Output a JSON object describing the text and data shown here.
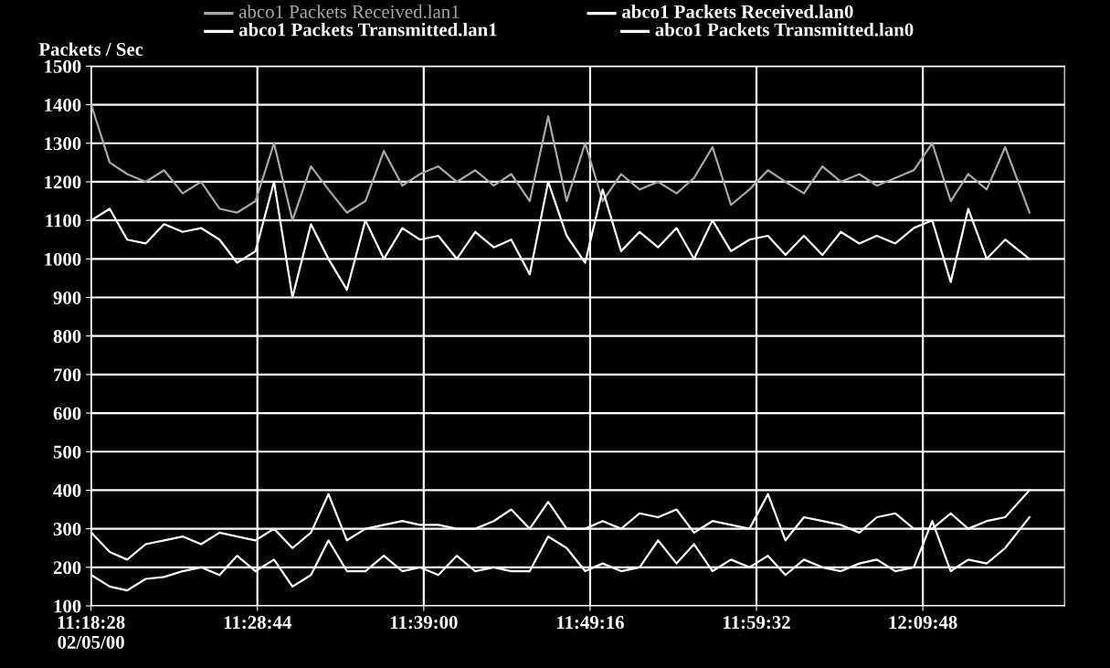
{
  "chart_data": {
    "type": "line",
    "ylabel": "Packets / Sec",
    "x": [
      11.308,
      11.327,
      11.345,
      11.364,
      11.383,
      11.402,
      11.421,
      11.44,
      11.458,
      11.477,
      11.496,
      11.515,
      11.534,
      11.552,
      11.571,
      11.59,
      11.609,
      11.628,
      11.646,
      11.665,
      11.684,
      11.703,
      11.722,
      11.74,
      11.759,
      11.778,
      11.797,
      11.816,
      11.834,
      11.853,
      11.872,
      11.891,
      11.91,
      11.928,
      11.947,
      11.966,
      11.985,
      12.004,
      12.022,
      12.041,
      12.06,
      12.079,
      12.098,
      12.116,
      12.135,
      12.154,
      12.173,
      12.192,
      12.21,
      12.229,
      12.248,
      12.273
    ],
    "series": [
      {
        "name": "abco1 Packets Received.lan1",
        "color": "#a8a8a8",
        "values": [
          1400,
          1250,
          1220,
          1200,
          1230,
          1170,
          1200,
          1130,
          1120,
          1150,
          1300,
          1100,
          1240,
          1180,
          1120,
          1150,
          1280,
          1190,
          1220,
          1240,
          1200,
          1230,
          1190,
          1220,
          1150,
          1370,
          1150,
          1300,
          1150,
          1220,
          1180,
          1200,
          1170,
          1210,
          1290,
          1140,
          1180,
          1230,
          1200,
          1170,
          1240,
          1200,
          1220,
          1190,
          1210,
          1230,
          1300,
          1150,
          1220,
          1180,
          1290,
          1120
        ]
      },
      {
        "name": "abco1 Packets Received.lan0",
        "color": "#ffffff",
        "values": [
          290,
          240,
          220,
          260,
          270,
          280,
          260,
          290,
          280,
          270,
          300,
          250,
          290,
          390,
          270,
          300,
          310,
          320,
          310,
          310,
          300,
          300,
          320,
          350,
          300,
          370,
          300,
          300,
          320,
          300,
          340,
          330,
          350,
          290,
          320,
          310,
          300,
          390,
          270,
          330,
          320,
          310,
          290,
          330,
          340,
          300,
          300,
          340,
          300,
          320,
          330,
          400
        ]
      },
      {
        "name": "abco1 Packets Transmitted.lan1",
        "color": "#ffffff",
        "values": [
          1100,
          1130,
          1050,
          1040,
          1090,
          1070,
          1080,
          1050,
          990,
          1020,
          1200,
          900,
          1090,
          1000,
          920,
          1100,
          1000,
          1080,
          1050,
          1060,
          1000,
          1070,
          1030,
          1050,
          960,
          1200,
          1060,
          990,
          1180,
          1020,
          1070,
          1030,
          1080,
          1000,
          1100,
          1020,
          1050,
          1060,
          1010,
          1060,
          1010,
          1070,
          1040,
          1060,
          1040,
          1080,
          1100,
          940,
          1130,
          1000,
          1050,
          1000
        ]
      },
      {
        "name": "abco1 Packets Transmitted.lan0",
        "color": "#ffffff",
        "values": [
          180,
          150,
          140,
          170,
          175,
          190,
          200,
          180,
          230,
          190,
          220,
          150,
          180,
          270,
          190,
          190,
          230,
          190,
          200,
          180,
          230,
          190,
          200,
          190,
          190,
          280,
          250,
          190,
          210,
          190,
          200,
          270,
          210,
          260,
          190,
          220,
          200,
          230,
          180,
          220,
          200,
          190,
          210,
          220,
          190,
          200,
          320,
          190,
          220,
          210,
          250,
          330
        ]
      }
    ],
    "xlim": [
      11.3078,
      12.309
    ],
    "xticks": [
      {
        "value": 11.3078,
        "label": "11:18:28\n02/05/00"
      },
      {
        "value": 11.4789,
        "label": "11:28:44"
      },
      {
        "value": 11.65,
        "label": "11:39:00"
      },
      {
        "value": 11.8211,
        "label": "11:49:16"
      },
      {
        "value": 11.9922,
        "label": "11:59:32"
      },
      {
        "value": 12.1633,
        "label": "12:09:48"
      }
    ],
    "ylim": [
      100,
      1500
    ],
    "yticks": [
      100,
      200,
      300,
      400,
      500,
      600,
      700,
      800,
      900,
      1000,
      1100,
      1200,
      1300,
      1400,
      1500
    ],
    "grid": true,
    "legend": "top",
    "marker": "none",
    "line_style": "solid"
  }
}
